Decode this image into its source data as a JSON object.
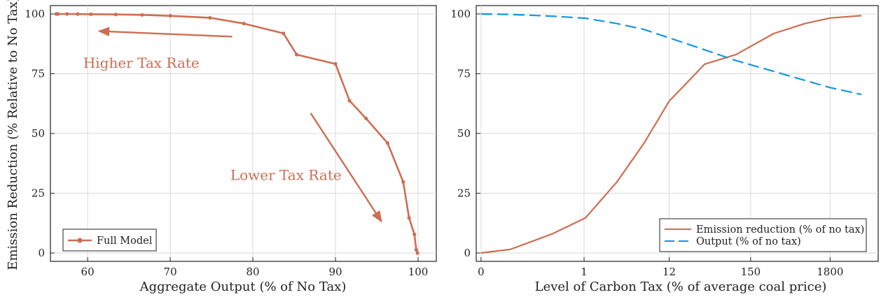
{
  "colors": {
    "emission": "#cc6e52",
    "output": "#1196e6",
    "grid": "#d9d9d9",
    "axis": "#222222"
  },
  "chart_data": [
    {
      "type": "line",
      "xlabel": "Aggregate Output (% of No Tax)",
      "ylabel": "Emission Reduction (% Relative to No Tax)",
      "xlim": [
        55.5,
        102.2
      ],
      "ylim": [
        -3.5,
        103.5
      ],
      "xticks": [
        60,
        70,
        80,
        90,
        100
      ],
      "yticks": [
        0,
        25,
        50,
        75,
        100
      ],
      "grid": true,
      "legend": "bottom-left",
      "series": [
        {
          "name": "Full Model",
          "color": "#cc6e52",
          "markers": true,
          "x": [
            99.93,
            99.78,
            99.55,
            98.9,
            98.2,
            96.3,
            93.7,
            91.7,
            90.0,
            85.3,
            83.7,
            78.9,
            74.8,
            70.0,
            66.6,
            63.4,
            60.4,
            58.8,
            57.5,
            56.4,
            56.2
          ],
          "y": [
            0.0,
            1.3,
            7.8,
            14.7,
            29.7,
            46.0,
            56.3,
            63.7,
            79.1,
            83.0,
            91.9,
            96.0,
            98.4,
            99.2,
            99.6,
            99.8,
            99.9,
            99.95,
            100.0,
            100.0,
            100.0
          ]
        }
      ],
      "annotations": [
        {
          "text": "Higher Tax Rate",
          "x": 66.5,
          "y": 77.5,
          "arrow_from": [
            77.5,
            90.5
          ],
          "arrow_to": [
            61.5,
            92.8
          ]
        },
        {
          "text": "Lower Tax Rate",
          "x": 84.0,
          "y": 30.5,
          "arrow_from": [
            87.0,
            58.5
          ],
          "arrow_to": [
            95.5,
            13.5
          ]
        }
      ]
    },
    {
      "type": "line",
      "xlabel": "Level of Carbon Tax (% of average coal price)",
      "ylabel": "",
      "xscale": "log",
      "xlim": [
        0.077,
        2.0
      ],
      "ylim": [
        -3.5,
        103.5
      ],
      "xticks": [
        "0",
        "1",
        "12",
        "150",
        "1800"
      ],
      "yticks": [
        0,
        25,
        50,
        75,
        100
      ],
      "grid": true,
      "legend": "bottom-right",
      "series": [
        {
          "name": "Emission reduction (% of no tax)",
          "color": "#cc6e52",
          "style": "solid",
          "x": [
            0.1,
            0.24,
            0.44,
            0.6,
            0.75,
            0.88,
            1.0,
            1.17,
            1.32,
            1.5,
            1.65,
            1.77,
            1.92
          ],
          "y": [
            0.0,
            1.5,
            8.0,
            14.7,
            29.7,
            46.0,
            63.5,
            79.0,
            83.0,
            91.8,
            96.0,
            98.3,
            99.3
          ]
        },
        {
          "name": "Output (% of no tax)",
          "color": "#1196e6",
          "style": "dashed",
          "x": [
            0.1,
            0.24,
            0.44,
            0.6,
            0.75,
            0.88,
            1.0,
            1.17,
            1.32,
            1.5,
            1.65,
            1.77,
            1.92
          ],
          "y": [
            100.0,
            99.8,
            99.1,
            98.2,
            96.0,
            93.5,
            90.0,
            85.0,
            80.5,
            76.0,
            72.2,
            69.2,
            66.3
          ]
        }
      ]
    }
  ]
}
